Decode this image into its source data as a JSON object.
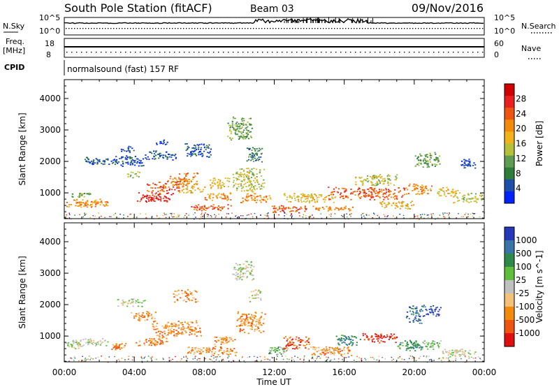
{
  "header": {
    "station": "South Pole Station (fitACF)",
    "beam": "Beam 03",
    "date": "09/Nov/2016"
  },
  "top_panels": {
    "nsky_label": "N.Sky",
    "nsearch_label": "N.Search",
    "noise_tick_high": "10^5",
    "noise_tick_low": "10^0",
    "freq_label_1": "Freq.",
    "freq_label_2": "[MHz]",
    "freq_tick_high": "18",
    "freq_tick_low": "8",
    "nave_label": "Nave",
    "nave_tick_high": "60",
    "nave_tick_low": "0",
    "cpid_label": "CPID",
    "cpid_value": "normalsound (fast) 157 RF"
  },
  "chart_data": [
    {
      "type": "heatmap",
      "name": "power",
      "ylabel": "Slant Range [km]",
      "xlabel": "Time UT",
      "xlim_hours": [
        0,
        24
      ],
      "x_ticks": [
        "00:00",
        "04:00",
        "08:00",
        "12:00",
        "16:00",
        "20:00",
        "00:00"
      ],
      "ylim": [
        180,
        4600
      ],
      "y_ticks": [
        1000,
        2000,
        3000,
        4000
      ],
      "colorbar": {
        "label": "Power [dB]",
        "ticks": [
          "4",
          "8",
          "12",
          "16",
          "20",
          "24",
          "28"
        ],
        "colors": [
          "#0022ff",
          "#1f4fa8",
          "#2f7d3a",
          "#5f9d52",
          "#b5c03b",
          "#f2b21a",
          "#f28a0a",
          "#ee5510",
          "#e82020",
          "#d10000"
        ]
      },
      "regions": [
        {
          "t": [
            0.0,
            2.6
          ],
          "r": [
            560,
            820
          ],
          "level": 6
        },
        {
          "t": [
            0.4,
            1.6
          ],
          "r": [
            880,
            1040
          ],
          "level": 3
        },
        {
          "t": [
            1.0,
            3.0
          ],
          "r": [
            1900,
            2150
          ],
          "level": 1
        },
        {
          "t": [
            2.8,
            4.6
          ],
          "r": [
            1850,
            2200
          ],
          "level": 1
        },
        {
          "t": [
            3.2,
            4.0
          ],
          "r": [
            2300,
            2500
          ],
          "level": 1
        },
        {
          "t": [
            3.5,
            4.3
          ],
          "r": [
            1500,
            1700
          ],
          "level": 4
        },
        {
          "t": [
            4.6,
            6.4
          ],
          "r": [
            2050,
            2350
          ],
          "level": 1
        },
        {
          "t": [
            5.0,
            5.9
          ],
          "r": [
            2550,
            2700
          ],
          "level": 1
        },
        {
          "t": [
            4.1,
            6.2
          ],
          "r": [
            720,
            1020
          ],
          "level": 8
        },
        {
          "t": [
            4.7,
            6.8
          ],
          "r": [
            1050,
            1400
          ],
          "level": 7
        },
        {
          "t": [
            6.0,
            7.6
          ],
          "r": [
            1250,
            1650
          ],
          "level": 6
        },
        {
          "t": [
            6.5,
            8.0
          ],
          "r": [
            1000,
            1250
          ],
          "level": 5
        },
        {
          "t": [
            6.8,
            8.4
          ],
          "r": [
            2150,
            2600
          ],
          "level": 1
        },
        {
          "t": [
            7.2,
            9.5
          ],
          "r": [
            450,
            650
          ],
          "level": 7
        },
        {
          "t": [
            8.0,
            9.6
          ],
          "r": [
            780,
            1020
          ],
          "level": 6
        },
        {
          "t": [
            8.3,
            9.4
          ],
          "r": [
            1150,
            1500
          ],
          "level": 5
        },
        {
          "t": [
            9.3,
            10.8
          ],
          "r": [
            2700,
            3450
          ],
          "level": 3
        },
        {
          "t": [
            9.6,
            11.4
          ],
          "r": [
            1050,
            1800
          ],
          "level": 4
        },
        {
          "t": [
            10.0,
            11.8
          ],
          "r": [
            700,
            1000
          ],
          "level": 6
        },
        {
          "t": [
            10.4,
            11.3
          ],
          "r": [
            2000,
            2500
          ],
          "level": 2
        },
        {
          "t": [
            11.8,
            14.0
          ],
          "r": [
            380,
            620
          ],
          "level": 7
        },
        {
          "t": [
            12.5,
            15.5
          ],
          "r": [
            700,
            1000
          ],
          "level": 5
        },
        {
          "t": [
            14.0,
            16.5
          ],
          "r": [
            440,
            600
          ],
          "level": 6
        },
        {
          "t": [
            15.0,
            19.5
          ],
          "r": [
            800,
            1200
          ],
          "level": 7
        },
        {
          "t": [
            16.5,
            19.0
          ],
          "r": [
            1250,
            1600
          ],
          "level": 4
        },
        {
          "t": [
            18.0,
            20.0
          ],
          "r": [
            500,
            760
          ],
          "level": 5
        },
        {
          "t": [
            19.5,
            21.0
          ],
          "r": [
            950,
            1300
          ],
          "level": 6
        },
        {
          "t": [
            20.0,
            21.5
          ],
          "r": [
            1800,
            2300
          ],
          "level": 3
        },
        {
          "t": [
            21.3,
            22.6
          ],
          "r": [
            900,
            1200
          ],
          "level": 5
        },
        {
          "t": [
            22.2,
            23.9
          ],
          "r": [
            700,
            1000
          ],
          "level": 4
        },
        {
          "t": [
            22.6,
            23.5
          ],
          "r": [
            1800,
            2100
          ],
          "level": 1
        }
      ]
    },
    {
      "type": "heatmap",
      "name": "velocity",
      "ylabel": "Slant Range [km]",
      "xlabel": "Time UT",
      "xlim_hours": [
        0,
        24
      ],
      "x_ticks": [
        "00:00",
        "04:00",
        "08:00",
        "12:00",
        "16:00",
        "20:00",
        "00:00"
      ],
      "ylim": [
        180,
        4600
      ],
      "y_ticks": [
        1000,
        2000,
        3000,
        4000
      ],
      "colorbar": {
        "label": "Velocity [m s^-1]",
        "ticks": [
          "1000",
          "500",
          "100",
          "25",
          "-25",
          "-100",
          "-500",
          "-1000"
        ],
        "colors": [
          "#2438b8",
          "#3a74a8",
          "#2f8a4a",
          "#5fbf3a",
          "#c0c0c0",
          "#f5c07a",
          "#f28a0a",
          "#ee5510",
          "#e01010"
        ]
      },
      "regions": [
        {
          "t": [
            0.0,
            1.0
          ],
          "r": [
            600,
            900
          ],
          "level": 4
        },
        {
          "t": [
            1.0,
            2.5
          ],
          "r": [
            700,
            950
          ],
          "level": 4
        },
        {
          "t": [
            2.5,
            3.5
          ],
          "r": [
            550,
            800
          ],
          "level": 6
        },
        {
          "t": [
            3.0,
            4.6
          ],
          "r": [
            1950,
            2200
          ],
          "level": 4
        },
        {
          "t": [
            3.8,
            5.2
          ],
          "r": [
            1500,
            1800
          ],
          "level": 6
        },
        {
          "t": [
            4.0,
            6.0
          ],
          "r": [
            700,
            1000
          ],
          "level": 6
        },
        {
          "t": [
            5.0,
            7.8
          ],
          "r": [
            1000,
            1500
          ],
          "level": 6
        },
        {
          "t": [
            6.2,
            7.6
          ],
          "r": [
            2100,
            2500
          ],
          "level": 6
        },
        {
          "t": [
            7.0,
            9.8
          ],
          "r": [
            400,
            700
          ],
          "level": 6
        },
        {
          "t": [
            8.5,
            9.8
          ],
          "r": [
            750,
            1000
          ],
          "level": 6
        },
        {
          "t": [
            9.5,
            10.8
          ],
          "r": [
            2800,
            3400
          ],
          "level": 4
        },
        {
          "t": [
            9.8,
            11.5
          ],
          "r": [
            1100,
            1800
          ],
          "level": 6
        },
        {
          "t": [
            10.5,
            11.2
          ],
          "r": [
            2100,
            2500
          ],
          "level": 4
        },
        {
          "t": [
            11.5,
            12.8
          ],
          "r": [
            420,
            700
          ],
          "level": 3
        },
        {
          "t": [
            12.5,
            14.0
          ],
          "r": [
            600,
            1000
          ],
          "level": 7
        },
        {
          "t": [
            14.0,
            16.5
          ],
          "r": [
            400,
            700
          ],
          "level": 6
        },
        {
          "t": [
            15.5,
            17.0
          ],
          "r": [
            700,
            1050
          ],
          "level": 2
        },
        {
          "t": [
            17.0,
            19.0
          ],
          "r": [
            800,
            1100
          ],
          "level": 8
        },
        {
          "t": [
            18.8,
            20.5
          ],
          "r": [
            550,
            900
          ],
          "level": 2
        },
        {
          "t": [
            19.5,
            20.5
          ],
          "r": [
            1400,
            2000
          ],
          "level": 1
        },
        {
          "t": [
            20.4,
            21.5
          ],
          "r": [
            600,
            900
          ],
          "level": 3
        },
        {
          "t": [
            20.5,
            21.5
          ],
          "r": [
            1650,
            2000
          ],
          "level": 0
        },
        {
          "t": [
            21.5,
            23.5
          ],
          "r": [
            300,
            600
          ],
          "level": 4
        }
      ]
    }
  ]
}
